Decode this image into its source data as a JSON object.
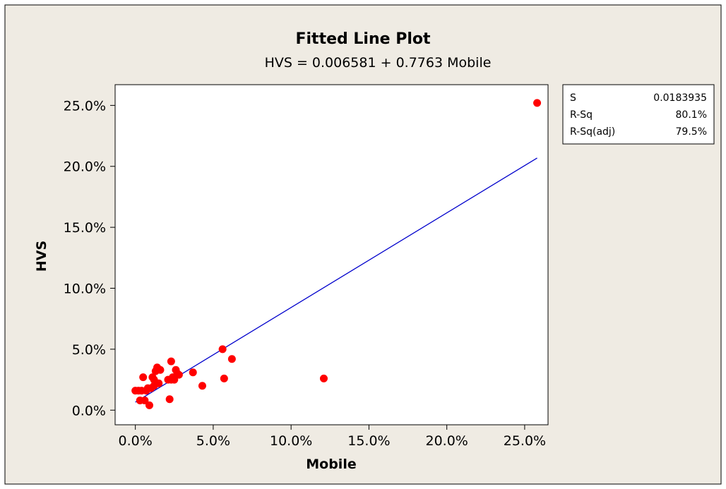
{
  "chart_data": {
    "type": "scatter",
    "title": "Fitted Line Plot",
    "subtitle": "HVS =  0.006581 + 0.7763 Mobile",
    "xlabel": "Mobile",
    "ylabel": "HVS",
    "xlim": [
      -0.013,
      0.265
    ],
    "ylim": [
      -0.012,
      0.267
    ],
    "x_ticks": [
      0,
      0.05,
      0.1,
      0.15,
      0.2,
      0.25
    ],
    "x_tick_labels": [
      "0.0%",
      "5.0%",
      "10.0%",
      "15.0%",
      "20.0%",
      "25.0%"
    ],
    "y_ticks": [
      0,
      0.05,
      0.1,
      0.15,
      0.2,
      0.25
    ],
    "y_tick_labels": [
      "0.0%",
      "5.0%",
      "10.0%",
      "15.0%",
      "20.0%",
      "25.0%"
    ],
    "grid": false,
    "series": [
      {
        "kind": "points",
        "color": "#ff0000",
        "x": [
          0.0,
          0.002,
          0.003,
          0.004,
          0.005,
          0.006,
          0.007,
          0.008,
          0.009,
          0.01,
          0.011,
          0.012,
          0.012,
          0.013,
          0.014,
          0.015,
          0.016,
          0.021,
          0.022,
          0.023,
          0.023,
          0.024,
          0.025,
          0.026,
          0.027,
          0.028,
          0.037,
          0.043,
          0.056,
          0.057,
          0.062,
          0.121,
          0.258
        ],
        "y": [
          0.016,
          0.016,
          0.008,
          0.016,
          0.027,
          0.008,
          0.016,
          0.018,
          0.004,
          0.018,
          0.027,
          0.025,
          0.02,
          0.032,
          0.035,
          0.022,
          0.033,
          0.025,
          0.009,
          0.04,
          0.025,
          0.027,
          0.025,
          0.033,
          0.03,
          0.029,
          0.031,
          0.02,
          0.05,
          0.026,
          0.042,
          0.026,
          0.252
        ]
      },
      {
        "kind": "fitted-line",
        "color": "#0000cc",
        "intercept": 0.006581,
        "slope": 0.7763,
        "x_range": [
          0.0,
          0.258
        ]
      }
    ]
  },
  "stats": {
    "rows": [
      {
        "label": "S",
        "value": "0.0183935"
      },
      {
        "label": "R-Sq",
        "value": "80.1%"
      },
      {
        "label": "R-Sq(adj)",
        "value": "79.5%"
      }
    ]
  },
  "colors": {
    "frame_background": "#efebe3",
    "plot_background": "#ffffff",
    "points": "#ff0000",
    "fit_line": "#0000cc"
  }
}
